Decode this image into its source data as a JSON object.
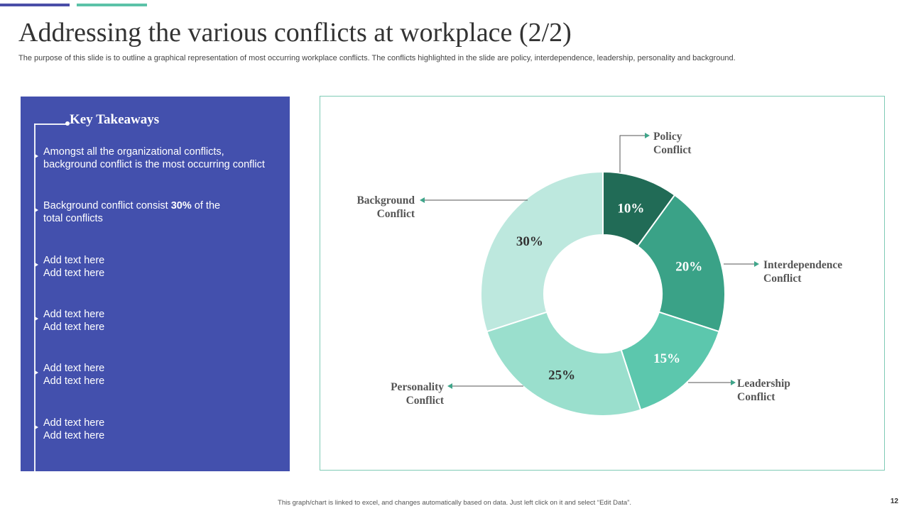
{
  "colors": {
    "accent_blue": "#4a4ea8",
    "accent_teal": "#5cc2a8",
    "panel_bg": "#4350ad",
    "chart_border": "#7fcbb5",
    "arrow_color": "#3fa58a"
  },
  "header": {
    "title": "Addressing the various conflicts at workplace (2/2)",
    "subtitle": "The purpose of this slide is to outline a graphical representation of most occurring workplace conflicts. The conflicts highlighted in the slide are policy, interdependence, leadership, personality and background."
  },
  "takeaways": {
    "heading": "Key Takeaways",
    "items": [
      {
        "line1": "Amongst all the organizational conflicts,",
        "line2": "background conflict is the most occurring conflict"
      },
      {
        "line1_pre": "Background conflict consist ",
        "line1_bold": "30%",
        "line1_post": " of the",
        "line2": "total conflicts"
      },
      {
        "line1": "Add text here",
        "line2": "Add text here"
      },
      {
        "line1": "Add text here",
        "line2": "Add text here"
      },
      {
        "line1": "Add text here",
        "line2": "Add text here"
      },
      {
        "line1": "Add text here",
        "line2": "Add text here"
      }
    ]
  },
  "chart_data": {
    "type": "pie",
    "style": "donut",
    "categories": [
      "Policy Conflict",
      "Interdependence Conflict",
      "Leadership Conflict",
      "Personality Conflict",
      "Background Conflict"
    ],
    "values": [
      10,
      20,
      15,
      25,
      30
    ],
    "value_labels": [
      "10%",
      "20%",
      "15%",
      "25%",
      "30%"
    ],
    "label_lines": [
      [
        "Policy",
        "Conflict"
      ],
      [
        "Interdependence",
        "Conflict"
      ],
      [
        "Leadership",
        "Conflict"
      ],
      [
        "Personality",
        "Conflict"
      ],
      [
        "Background",
        "Conflict"
      ]
    ],
    "colors": [
      "#216b56",
      "#3aa287",
      "#5cc7ad",
      "#9adfcd",
      "#bde8de"
    ],
    "value_label_colors": [
      "#ffffff",
      "#ffffff",
      "#ffffff",
      "#333333",
      "#333333"
    ],
    "start_angle_deg": 0,
    "direction": "clockwise",
    "legend": "none"
  },
  "footer": {
    "note": "This graph/chart is linked to excel, and changes automatically based on data. Just left click on it and select “Edit Data”.",
    "page_number": "12"
  }
}
